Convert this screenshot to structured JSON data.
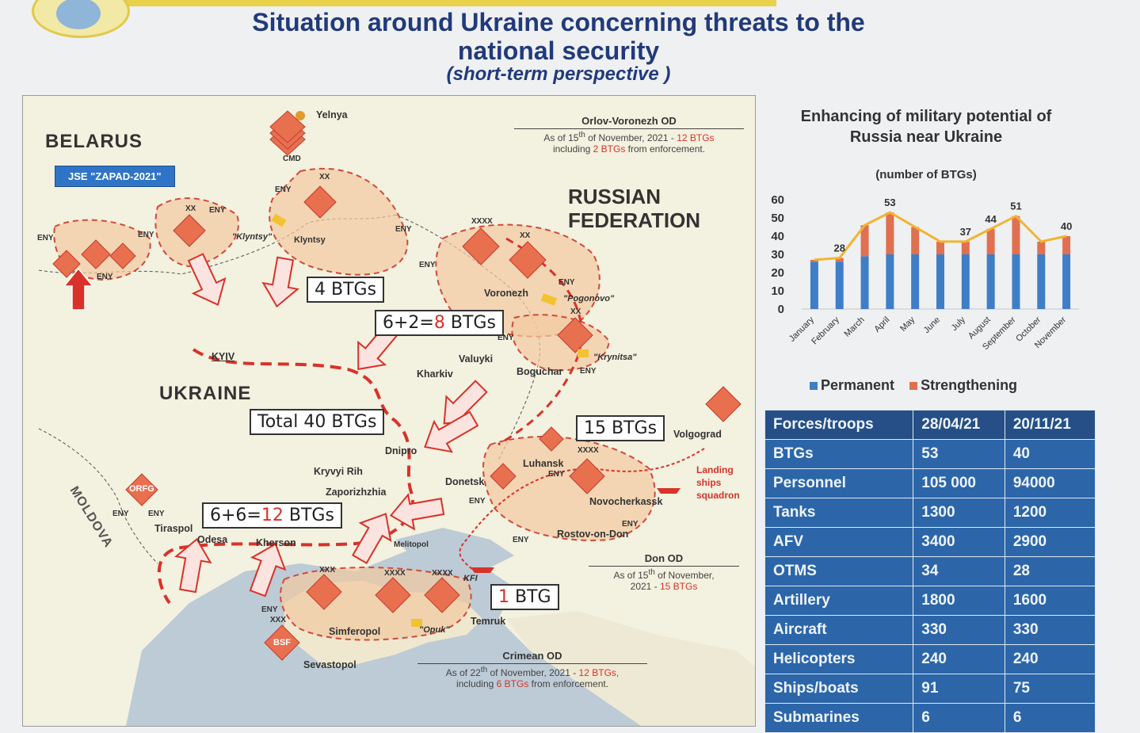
{
  "header": {
    "title": "Situation around Ukraine concerning threats to the national security",
    "subtitle": "(short-term perspective )"
  },
  "map": {
    "countries": {
      "belarus": "BELARUS",
      "russia_line1": "RUSSIAN",
      "russia_line2": "FEDERATION",
      "ukraine": "UKRAINE",
      "moldova": "MOLDOVA"
    },
    "zapad": "JSE \"ZAPAD-2021\"",
    "cities": {
      "yelnya": "Yelnya",
      "klyntsy": "Klyntsy",
      "klyntsy_q": "\"Klyntsy\"",
      "voronezh": "Voronezh",
      "pogonovo": "\"Pogonovo\"",
      "kyiv": "KYIV",
      "valuyki": "Valuyki",
      "kharkiv": "Kharkiv",
      "boguchar": "Boguchar",
      "krynitsa": "\"Krynitsa\"",
      "volgograd": "Volgograd",
      "dnipro": "Dnipro",
      "kryvyi_rih": "Kryvyi Rih",
      "zaporizhzhia": "Zaporizhzhia",
      "donetsk": "Donetsk",
      "luhansk": "Luhansk",
      "novocherkassk": "Novocherkassk",
      "rostov": "Rostov-on-Don",
      "tiraspol": "Tiraspol",
      "odesa": "Odesa",
      "kherson": "Kherson",
      "melitopol": "Melitopol",
      "simferopol": "Simferopol",
      "sevastopol": "Sevastopol",
      "opuk": "\"Opuk\"",
      "temruk": "Temruk",
      "kfi": "KFI"
    },
    "unit_labels": {
      "cmd": "CMD",
      "eny": "ENY",
      "orfg": "ORFG",
      "bsf": "BSF",
      "xx": "XX",
      "xxx": "XXX",
      "xxxx": "XXXX"
    },
    "btg_boxes": {
      "north": "4 BTGs",
      "voronezh_a": "6+2=",
      "voronezh_b": "8",
      "voronezh_c": " BTGs",
      "total": "Total 40 BTGs",
      "east": "15 BTGs",
      "south_a": "6+6=",
      "south_b": "12",
      "south_c": " BTGs",
      "crimea_a": "1",
      "crimea_b": " BTG"
    },
    "notes": {
      "orlov_title": "Orlov-Voronezh OD",
      "orlov_l1a": "As of 15",
      "orlov_sup": "th",
      "orlov_l1b": " of November, 2021 - ",
      "orlov_l1c": "12 BTGs",
      "orlov_l2a": "including ",
      "orlov_l2b": "2 BTGs",
      "orlov_l2c": " from enforcement.",
      "don_title": "Don OD",
      "don_l1a": "As of 15",
      "don_sup": "th",
      "don_l1b": " of November,",
      "don_l2a": "2021 - ",
      "don_l2b": "15 BTGs",
      "crimean_title": "Crimean OD",
      "crimean_l1a": "As of 22",
      "crimean_sup": "th",
      "crimean_l1b": " of November, 2021 - ",
      "crimean_l1c": "12 BTGs,",
      "crimean_l2a": "including ",
      "crimean_l2b": "6 BTGs",
      "crimean_l2c": " from enforcement.",
      "landing": "Landing ships squadron"
    }
  },
  "chart_data": {
    "type": "bar",
    "title": "Enhancing of military potential of Russia near Ukraine",
    "subtitle": "(number of BTGs)",
    "categories": [
      "January",
      "February",
      "March",
      "April",
      "May",
      "June",
      "July",
      "August",
      "September",
      "October",
      "November"
    ],
    "series": [
      {
        "name": "Permanent",
        "color": "#3f7ec7",
        "values": [
          26,
          26,
          29,
          30,
          30,
          30,
          30,
          30,
          30,
          30,
          30
        ]
      },
      {
        "name": "Strengthening",
        "color": "#e07050",
        "values": [
          1,
          2,
          17,
          23,
          15,
          7,
          7,
          14,
          21,
          7,
          10
        ]
      }
    ],
    "line": {
      "color": "#f2b42e",
      "values": [
        27,
        28,
        46,
        53,
        45,
        37,
        37,
        44,
        51,
        37,
        40
      ]
    },
    "data_labels": [
      {
        "index": 1,
        "text": "28"
      },
      {
        "index": 3,
        "text": "53"
      },
      {
        "index": 6,
        "text": "37"
      },
      {
        "index": 7,
        "text": "44"
      },
      {
        "index": 8,
        "text": "51"
      },
      {
        "index": 10,
        "text": "40"
      }
    ],
    "y_ticks": [
      "0",
      "10",
      "20",
      "30",
      "40",
      "50",
      "60"
    ],
    "ylim": [
      0,
      60
    ],
    "legend": {
      "permanent": "Permanent",
      "strengthening": "Strengthening"
    }
  },
  "forces_table": {
    "headers": [
      "Forces/troops",
      "28/04/21",
      "20/11/21"
    ],
    "rows": [
      [
        "BTGs",
        "53",
        "40"
      ],
      [
        "Personnel",
        "105 000",
        "94000"
      ],
      [
        "Tanks",
        "1300",
        "1200"
      ],
      [
        "AFV",
        "3400",
        "2900"
      ],
      [
        "OTMS",
        "34",
        "28"
      ],
      [
        "Artillery",
        "1800",
        "1600"
      ],
      [
        "Aircraft",
        "330",
        "330"
      ],
      [
        "Helicopters",
        "240",
        "240"
      ],
      [
        "Ships/boats",
        "91",
        "75"
      ],
      [
        "Submarines",
        "6",
        "6"
      ]
    ]
  }
}
